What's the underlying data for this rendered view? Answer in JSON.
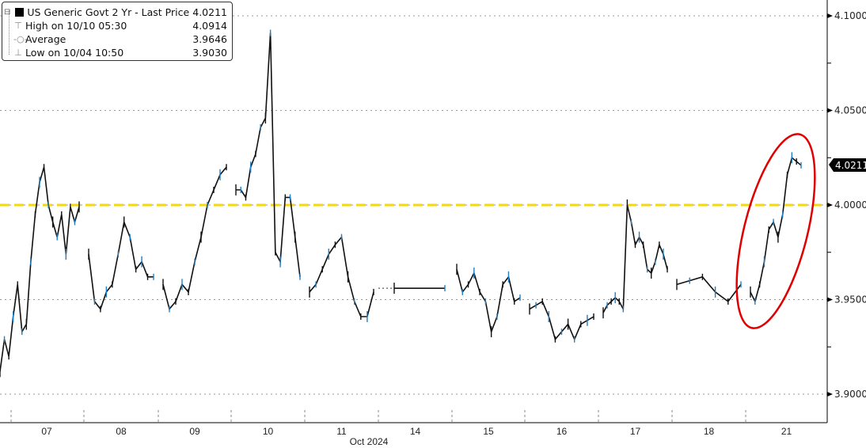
{
  "chart_data": {
    "type": "line",
    "title": "",
    "xlabel": "Oct 2024",
    "ylabel": "",
    "ylim": [
      3.89,
      4.108
    ],
    "y_ticks": [
      "4.1000",
      "4.0500",
      "4.0000",
      "3.9500",
      "3.9000"
    ],
    "y_tick_values": [
      4.1,
      4.05,
      4.0,
      3.95,
      3.9
    ],
    "x_tick_labels": [
      "07",
      "08",
      "09",
      "10",
      "11",
      "14",
      "15",
      "16",
      "17",
      "18",
      "21"
    ],
    "grid": "horizontal dotted",
    "legend_placement": "top-left",
    "series": [
      {
        "name": "US Generic Govt 2 Yr - Last Price",
        "sessions": [
          {
            "day": "07",
            "values": [
              3.912,
              3.929,
              3.92,
              3.941,
              3.958,
              3.933,
              3.937,
              3.97,
              3.995,
              4.012,
              4.02,
              4.0,
              3.991,
              3.983,
              3.995,
              3.974,
              3.999,
              3.991,
              3.999
            ]
          },
          {
            "day": "08",
            "values": [
              3.974,
              3.949,
              3.945,
              3.954,
              3.958,
              3.974,
              3.991,
              3.983,
              3.966,
              3.97,
              3.962,
              3.962
            ]
          },
          {
            "day": "09",
            "values": [
              3.958,
              3.945,
              3.949,
              3.958,
              3.954,
              3.97,
              3.983,
              4.0,
              4.008,
              4.016,
              4.02
            ]
          },
          {
            "day": "10",
            "values": [
              4.008,
              4.008,
              4.004,
              4.02,
              4.027,
              4.041,
              4.046,
              4.091,
              3.975,
              3.97,
              4.004,
              4.004,
              3.983,
              3.962
            ]
          },
          {
            "day": "11",
            "values": [
              3.954,
              3.958,
              3.966,
              3.974,
              3.979,
              3.983,
              3.962,
              3.949,
              3.941,
              3.941,
              3.954
            ]
          },
          {
            "day": "14",
            "values": [
              3.956,
              3.956
            ]
          },
          {
            "day": "15",
            "values": [
              3.966,
              3.954,
              3.958,
              3.964,
              3.954,
              3.949,
              3.933,
              3.941,
              3.958,
              3.962,
              3.949,
              3.951
            ]
          },
          {
            "day": "16",
            "values": [
              3.945,
              3.947,
              3.949,
              3.941,
              3.929,
              3.933,
              3.937,
              3.929,
              3.937,
              3.939,
              3.941
            ]
          },
          {
            "day": "17",
            "values": [
              3.943,
              3.947,
              3.949,
              3.951,
              3.949,
              3.945,
              4.0,
              3.991,
              3.979,
              3.983,
              3.979,
              3.966,
              3.964,
              3.97,
              3.979,
              3.974,
              3.966
            ]
          },
          {
            "day": "18",
            "values": [
              3.958,
              3.96,
              3.962,
              3.954,
              3.949,
              3.958
            ]
          },
          {
            "day": "21",
            "values": [
              3.954,
              3.949,
              3.958,
              3.97,
              3.987,
              3.991,
              3.983,
              3.995,
              4.016,
              4.025,
              4.023,
              4.021
            ]
          }
        ]
      }
    ],
    "reference_line": {
      "value": 4.0,
      "color": "#f5d90a",
      "style": "dashed"
    },
    "last_price_label": "4.0211",
    "annotation": {
      "shape": "ellipse",
      "color": "#e00000",
      "around": "21"
    },
    "colors": {
      "line_dark": "#111111",
      "line_blue": "#1f7fc4"
    }
  },
  "legend": {
    "title": "US Generic Govt 2 Yr - Last Price",
    "title_value": "4.0211",
    "rows": [
      {
        "label": "High on 10/10 05:30",
        "value": "4.0914",
        "icon": "high-marker-icon"
      },
      {
        "label": "Average",
        "value": "3.9646",
        "icon": "average-marker-icon"
      },
      {
        "label": "Low on 10/04 10:50",
        "value": "3.9030",
        "icon": "low-marker-icon"
      }
    ]
  }
}
